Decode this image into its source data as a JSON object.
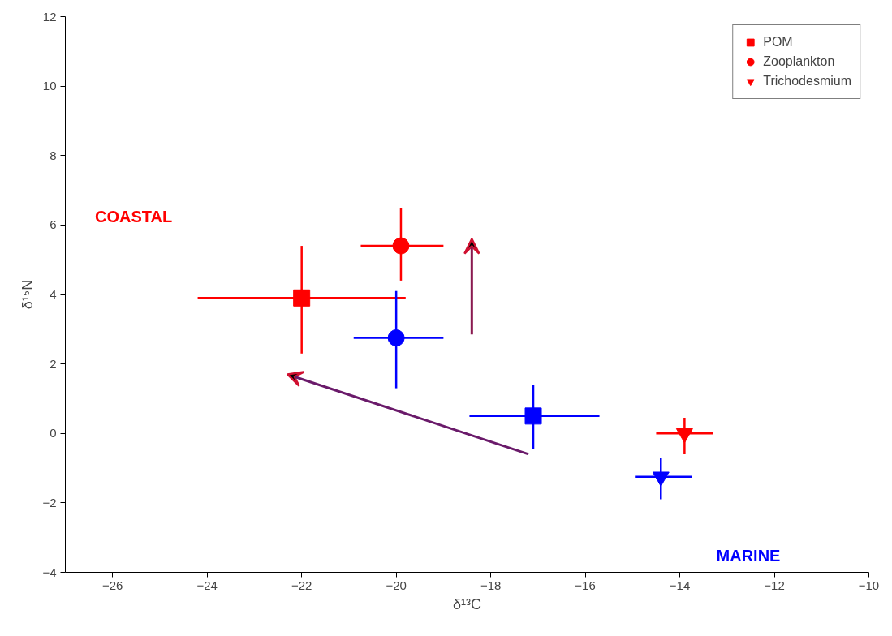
{
  "chart_data": {
    "type": "scatter",
    "xlabel": "δ¹³C",
    "ylabel": "δ¹⁵N",
    "xlim": [
      -27,
      -10
    ],
    "xticks": [
      -26,
      -24,
      -22,
      -20,
      -18,
      -16,
      -14,
      -12,
      -10
    ],
    "ylim": [
      -4,
      12
    ],
    "yticks": [
      -4,
      -2,
      0,
      2,
      4,
      6,
      8,
      10,
      12
    ],
    "grid": false,
    "legend": "top right",
    "series": [
      {
        "name": "POM",
        "marker": "square",
        "colors": [
          "#ff0000",
          "#0000ff"
        ],
        "x": [
          -22,
          -17.1
        ],
        "values": [
          3.9,
          0.5
        ],
        "errors": [
          [
            2.3,
            5.4
          ],
          [
            -0.45,
            1.4
          ]
        ],
        "xerrors": [
          [
            -24.2,
            -19.8
          ],
          [
            -18.45,
            -15.7
          ]
        ]
      },
      {
        "name": "Zooplankton",
        "marker": "circle",
        "colors": [
          "#ff0000",
          "#0000ff"
        ],
        "x": [
          -19.9,
          -20
        ],
        "values": [
          5.4,
          2.75
        ],
        "errors": [
          [
            4.4,
            6.5
          ],
          [
            1.3,
            4.1
          ]
        ],
        "xerrors": [
          [
            -20.75,
            -19.0
          ],
          [
            -20.9,
            -19.0
          ]
        ]
      },
      {
        "name": "Trichodesmium",
        "marker": "triangle",
        "colors": [
          "#ff0000",
          "#0000ff"
        ],
        "x": [
          -13.9,
          -14.4
        ],
        "values": [
          0,
          -1.25
        ],
        "errors": [
          [
            -0.6,
            0.45
          ],
          [
            -1.9,
            -0.7
          ]
        ],
        "xerrors": [
          [
            -14.5,
            -13.3
          ],
          [
            -14.95,
            -13.75
          ]
        ]
      }
    ],
    "annotations": [
      "COASTAL",
      "MARINE"
    ]
  }
}
